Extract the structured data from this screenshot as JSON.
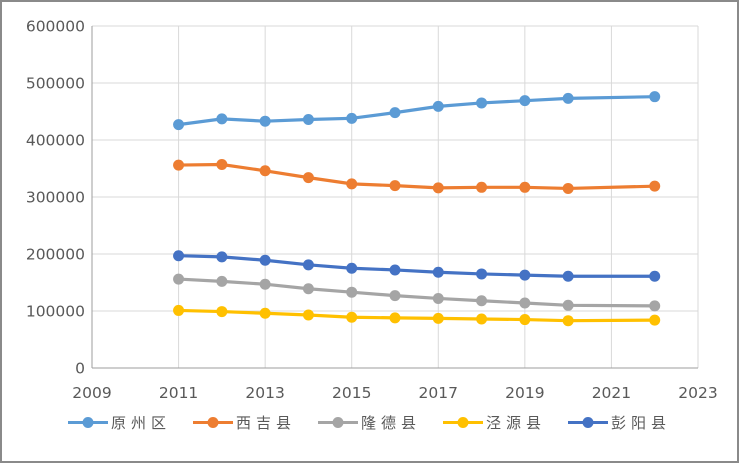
{
  "chart_data": {
    "type": "line",
    "x": [
      2011,
      2012,
      2013,
      2014,
      2015,
      2016,
      2017,
      2018,
      2019,
      2020,
      2022
    ],
    "series": [
      {
        "name": "原州区",
        "color": "#5B9BD5",
        "values": [
          427000,
          437000,
          433000,
          436000,
          438000,
          448000,
          459000,
          465000,
          469000,
          473000,
          476000
        ]
      },
      {
        "name": "西吉县",
        "color": "#ED7D31",
        "values": [
          356000,
          357000,
          346000,
          334000,
          323000,
          320000,
          316000,
          317000,
          317000,
          315000,
          319000
        ]
      },
      {
        "name": "隆德县",
        "color": "#A5A5A5",
        "values": [
          156000,
          152000,
          147000,
          139000,
          133000,
          127000,
          122000,
          118000,
          114000,
          110000,
          109000
        ]
      },
      {
        "name": "泾源县",
        "color": "#FFC000",
        "values": [
          101000,
          99000,
          96000,
          93000,
          89000,
          88000,
          87000,
          86000,
          85000,
          83000,
          84000
        ]
      },
      {
        "name": "彭阳县",
        "color": "#4472C4",
        "values": [
          197000,
          195000,
          189000,
          181000,
          175000,
          172000,
          168000,
          165000,
          163000,
          161000,
          161000
        ]
      }
    ],
    "title": "",
    "xlabel": "",
    "ylabel": "",
    "xlim": [
      2009,
      2023
    ],
    "ylim": [
      0,
      600000
    ],
    "x_ticks": [
      2009,
      2011,
      2013,
      2015,
      2017,
      2019,
      2021,
      2023
    ],
    "y_ticks": [
      0,
      100000,
      200000,
      300000,
      400000,
      500000,
      600000
    ],
    "grid": true,
    "legend_position": "bottom",
    "marker": "circle"
  },
  "styles": {
    "gridline_color": "#D9D9D9",
    "axis_color": "#9E9E9E",
    "tick_label_color": "#595959",
    "background": "#FFFFFF",
    "frame_border_color": "#8A8A8A"
  }
}
